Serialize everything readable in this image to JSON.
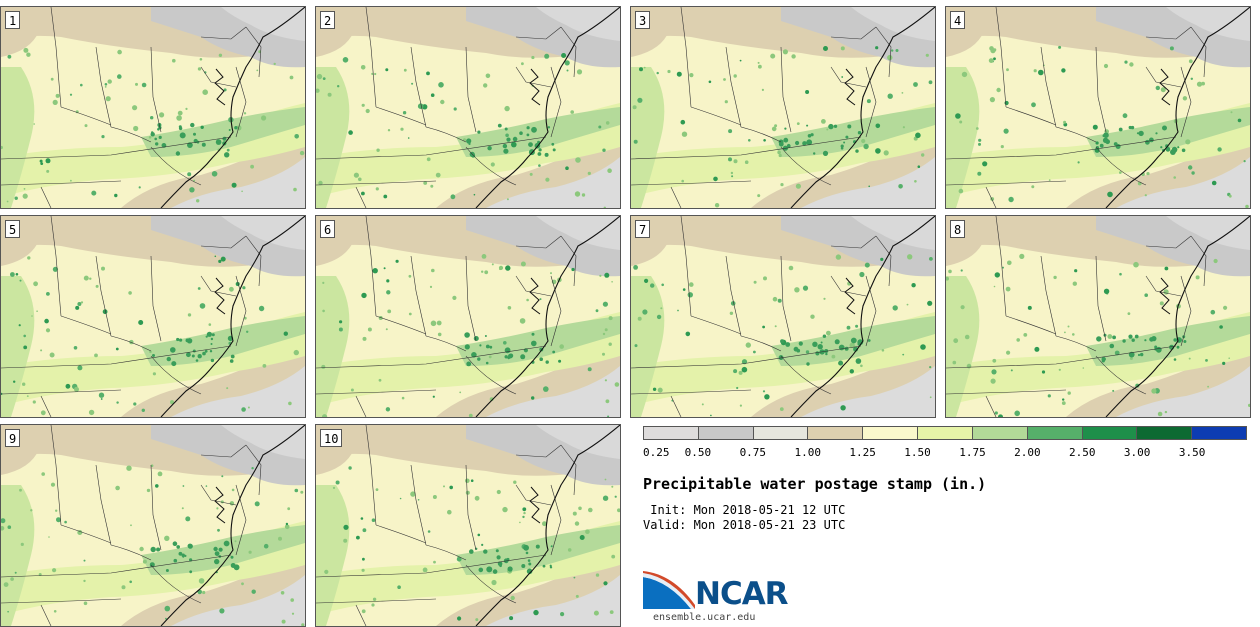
{
  "panels": [
    {
      "label": "1"
    },
    {
      "label": "2"
    },
    {
      "label": "3"
    },
    {
      "label": "4"
    },
    {
      "label": "5"
    },
    {
      "label": "6"
    },
    {
      "label": "7"
    },
    {
      "label": "8"
    },
    {
      "label": "9"
    },
    {
      "label": "10"
    }
  ],
  "legend": {
    "colors": [
      "#dedcdc",
      "#c8c8c8",
      "#e6e6de",
      "#ddd0b0",
      "#faf8cc",
      "#e6f4a8",
      "#b2da98",
      "#56b06a",
      "#1e8f4a",
      "#0d6a32",
      "#0d3cb2"
    ],
    "tick_labels": [
      "0.25",
      "0.50",
      "0.75",
      "1.00",
      "1.25",
      "1.50",
      "1.75",
      "2.00",
      "2.50",
      "3.00",
      "3.50"
    ]
  },
  "title": "Precipitable water postage stamp (in.)",
  "init": " Init: Mon 2018-05-21 12 UTC",
  "valid": "Valid: Mon 2018-05-21 23 UTC",
  "logo": {
    "text": "NCAR",
    "url": "ensemble.ucar.edu"
  }
}
